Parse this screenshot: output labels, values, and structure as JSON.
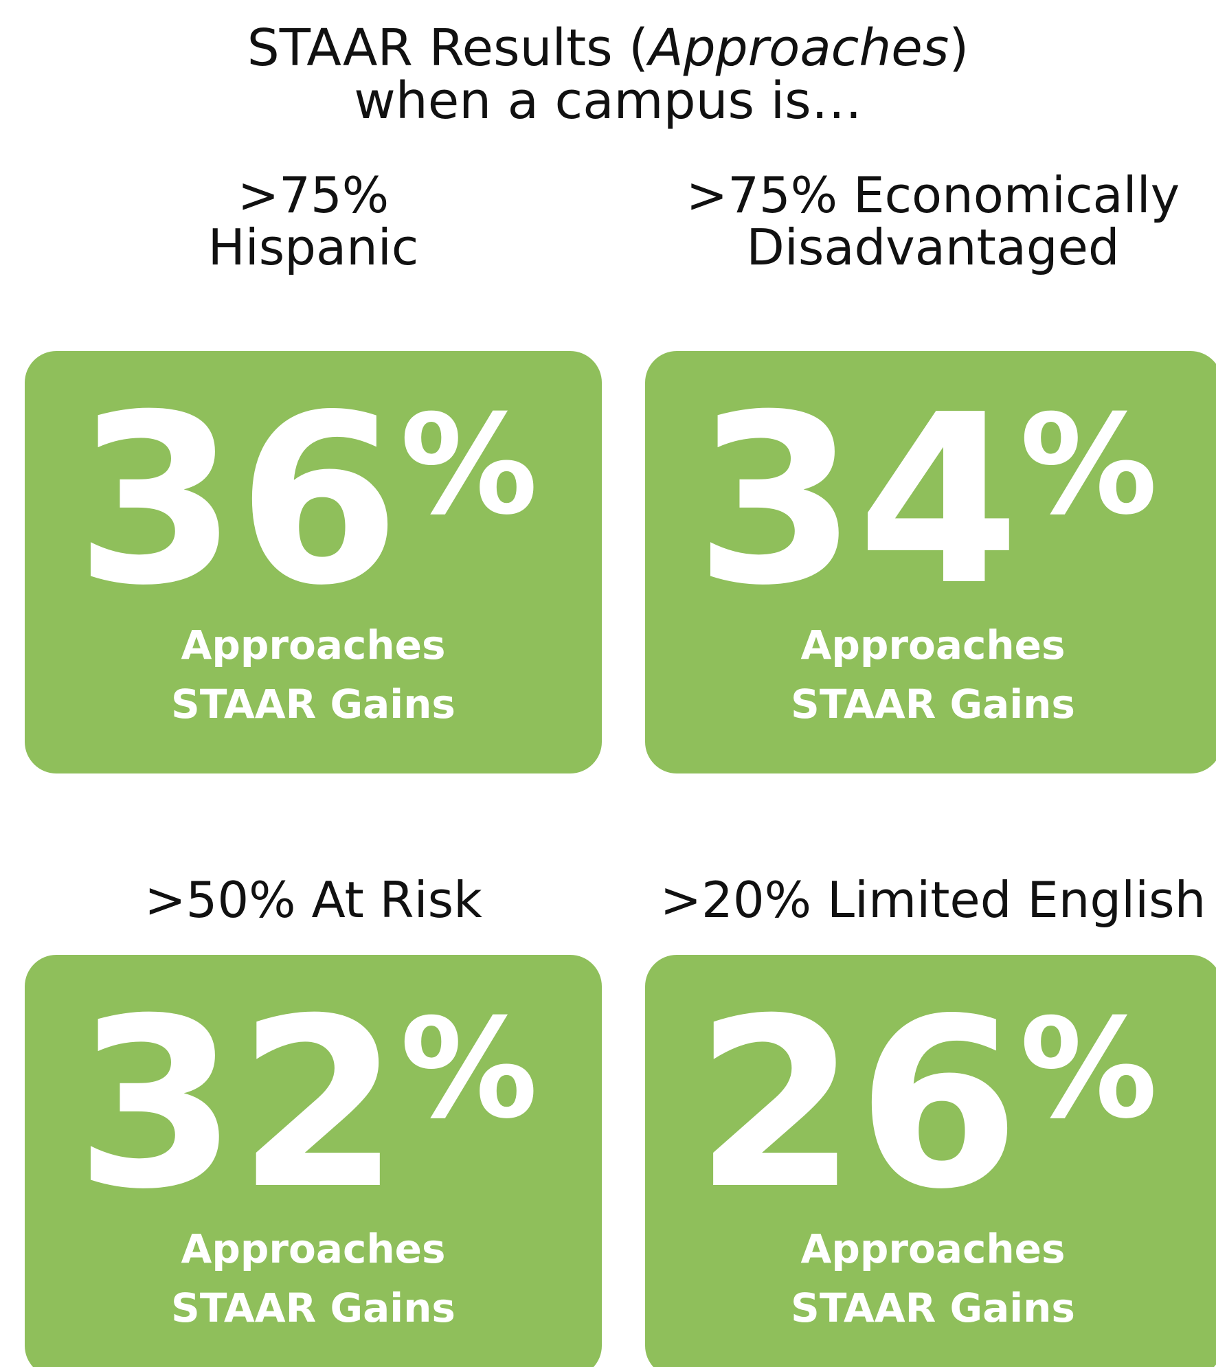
{
  "header": {
    "title": [
      "STAAR Results (",
      "Approaches",
      ")"
    ],
    "subtitle": "when a campus is…"
  },
  "cards": [
    {
      "heading": [
        ">75%",
        "Hispanic"
      ],
      "value": "36",
      "unit": "%",
      "label": [
        "Approaches",
        "STAAR Gains"
      ]
    },
    {
      "heading": [
        ">75% Economically",
        "Disadvantaged"
      ],
      "value": "34",
      "unit": "%",
      "label": [
        "Approaches",
        "STAAR Gains"
      ]
    },
    {
      "heading": [
        ">50% At Risk"
      ],
      "value": "32",
      "unit": "%",
      "label": [
        "Approaches",
        "STAAR Gains"
      ]
    },
    {
      "heading": [
        ">20% Limited English"
      ],
      "value": "26",
      "unit": "%",
      "label": [
        "Approaches",
        "STAAR Gains"
      ]
    }
  ]
}
